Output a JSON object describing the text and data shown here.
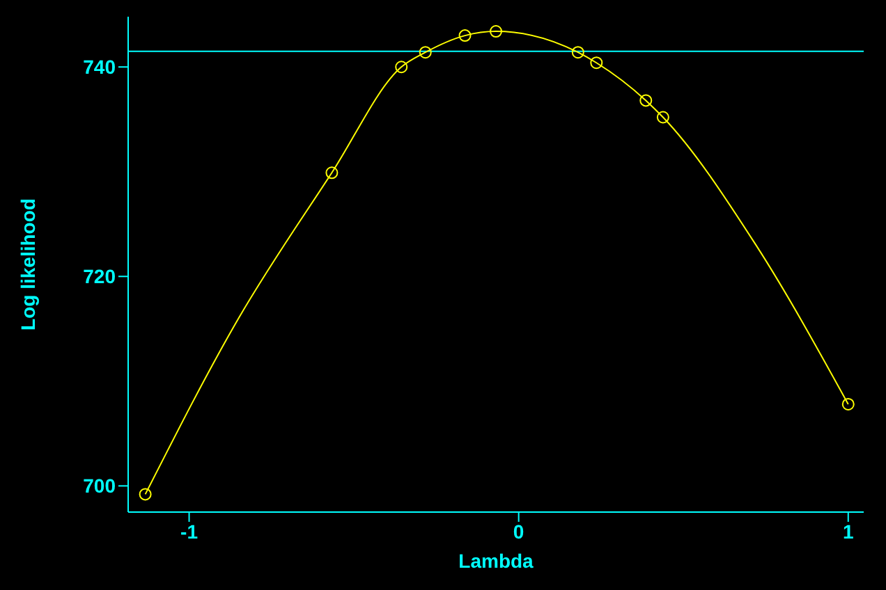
{
  "chart_data": {
    "type": "line",
    "xlabel": "Lambda",
    "ylabel": "Log likelihood",
    "xlim": [
      -1.185,
      1.047
    ],
    "ylim": [
      697.5,
      744.8
    ],
    "xticks": [
      -1,
      0,
      1
    ],
    "yticks": [
      700,
      720,
      740
    ],
    "series": [
      {
        "color": "#ffff00",
        "x": [
          -1.133,
          -0.85,
          -0.567,
          -0.356,
          -0.283,
          -0.163,
          -0.069,
          0.18,
          0.236,
          0.386,
          0.438,
          0.72,
          1.0
        ],
        "values": [
          699.2,
          716,
          729.9,
          740,
          741.4,
          743,
          743.4,
          741.4,
          740.4,
          736.8,
          735.2,
          723,
          707.8
        ]
      },
      {
        "type": "scatter",
        "color": "#ffff00",
        "marker": "circle",
        "x": [
          -1.133,
          -0.567,
          -0.356,
          -0.283,
          -0.163,
          -0.069,
          0.18,
          0.236,
          0.386,
          0.438,
          1.0
        ],
        "values": [
          699.2,
          729.9,
          740,
          741.4,
          743,
          743.4,
          741.4,
          740.4,
          736.8,
          735.2,
          707.8
        ]
      }
    ],
    "ref_lines": [
      {
        "axis": "y",
        "value": 741.5,
        "color": "#00ffff"
      }
    ]
  }
}
